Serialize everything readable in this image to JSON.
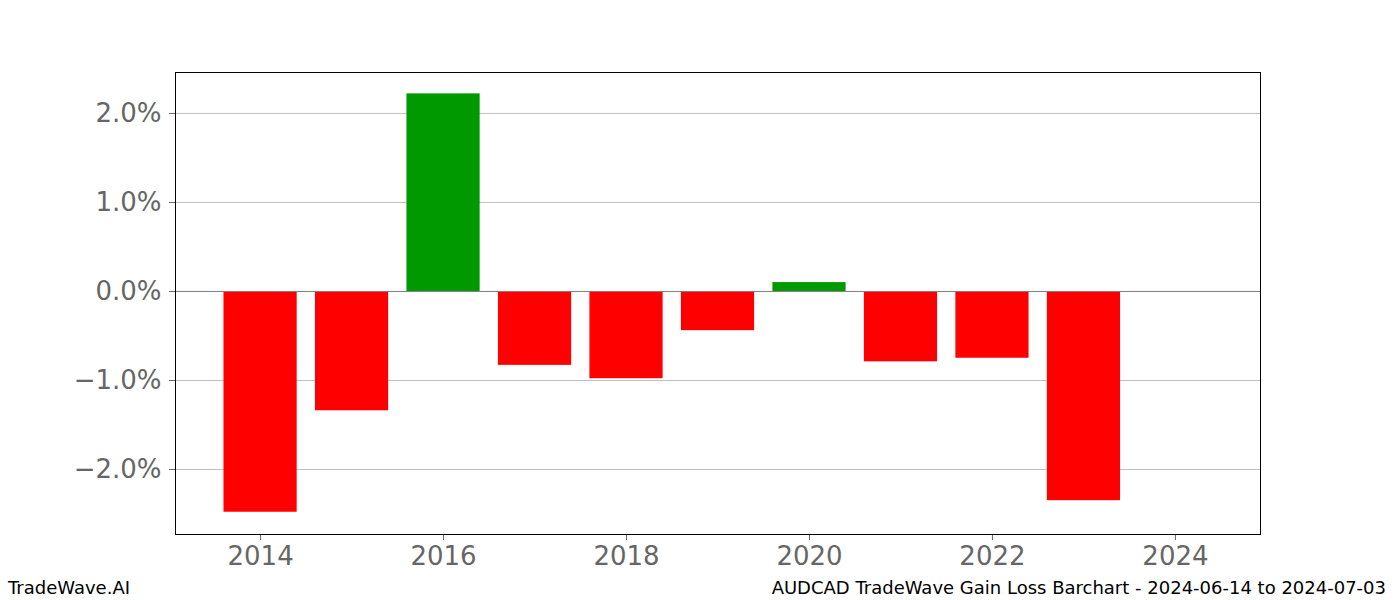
{
  "chart_data": {
    "type": "bar",
    "title": "AUDCAD TradeWave Gain Loss Barchart - 2024-06-14 to 2024-07-03",
    "annotations": [
      "TradeWave.AI"
    ],
    "x": [
      2014,
      2015,
      2016,
      2017,
      2018,
      2019,
      2020,
      2021,
      2022,
      2023
    ],
    "values": [
      -2.48,
      -1.34,
      2.22,
      -0.83,
      -0.98,
      -0.44,
      0.1,
      -0.79,
      -0.75,
      -2.35
    ],
    "colors": [
      "#ff0000",
      "#ff0000",
      "#009900",
      "#ff0000",
      "#ff0000",
      "#ff0000",
      "#009900",
      "#ff0000",
      "#ff0000",
      "#ff0000"
    ],
    "xlim": [
      2013.07,
      2024.93
    ],
    "xticks": [
      2014,
      2016,
      2018,
      2020,
      2022,
      2024
    ],
    "ylim": [
      -2.73,
      2.46
    ],
    "yticks": [
      {
        "value": -2,
        "label": "−2.0%"
      },
      {
        "value": -1,
        "label": "−1.0%"
      },
      {
        "value": 0,
        "label": "0.0%"
      },
      {
        "value": 1,
        "label": "1.0%"
      },
      {
        "value": 2,
        "label": "2.0%"
      }
    ],
    "grid": true
  }
}
